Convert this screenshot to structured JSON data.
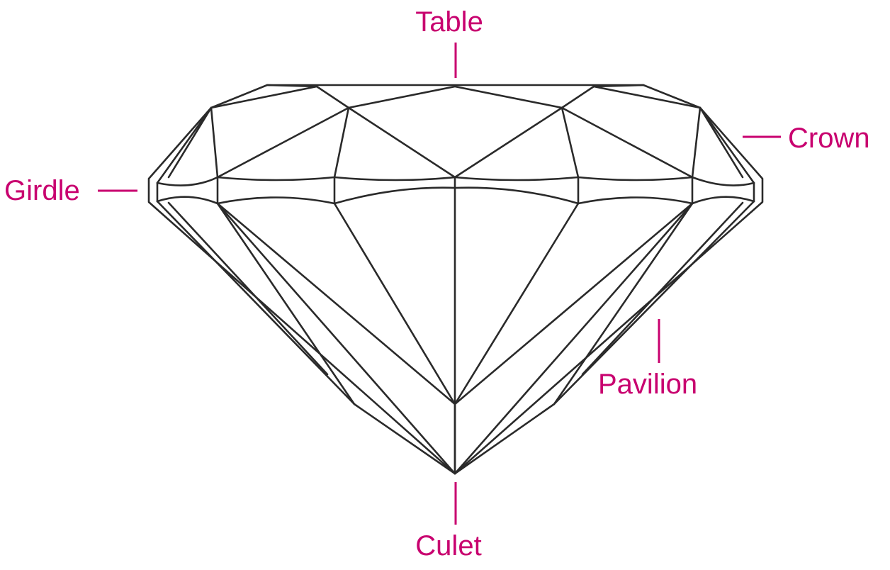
{
  "diagram": {
    "subject": "round brilliant cut diamond, side profile",
    "labels": {
      "table": "Table",
      "crown": "Crown",
      "girdle": "Girdle",
      "pavilion": "Pavilion",
      "culet": "Culet"
    },
    "colors": {
      "label": "#c8006f",
      "line": "#2a2a2a",
      "background": "#ffffff"
    }
  }
}
